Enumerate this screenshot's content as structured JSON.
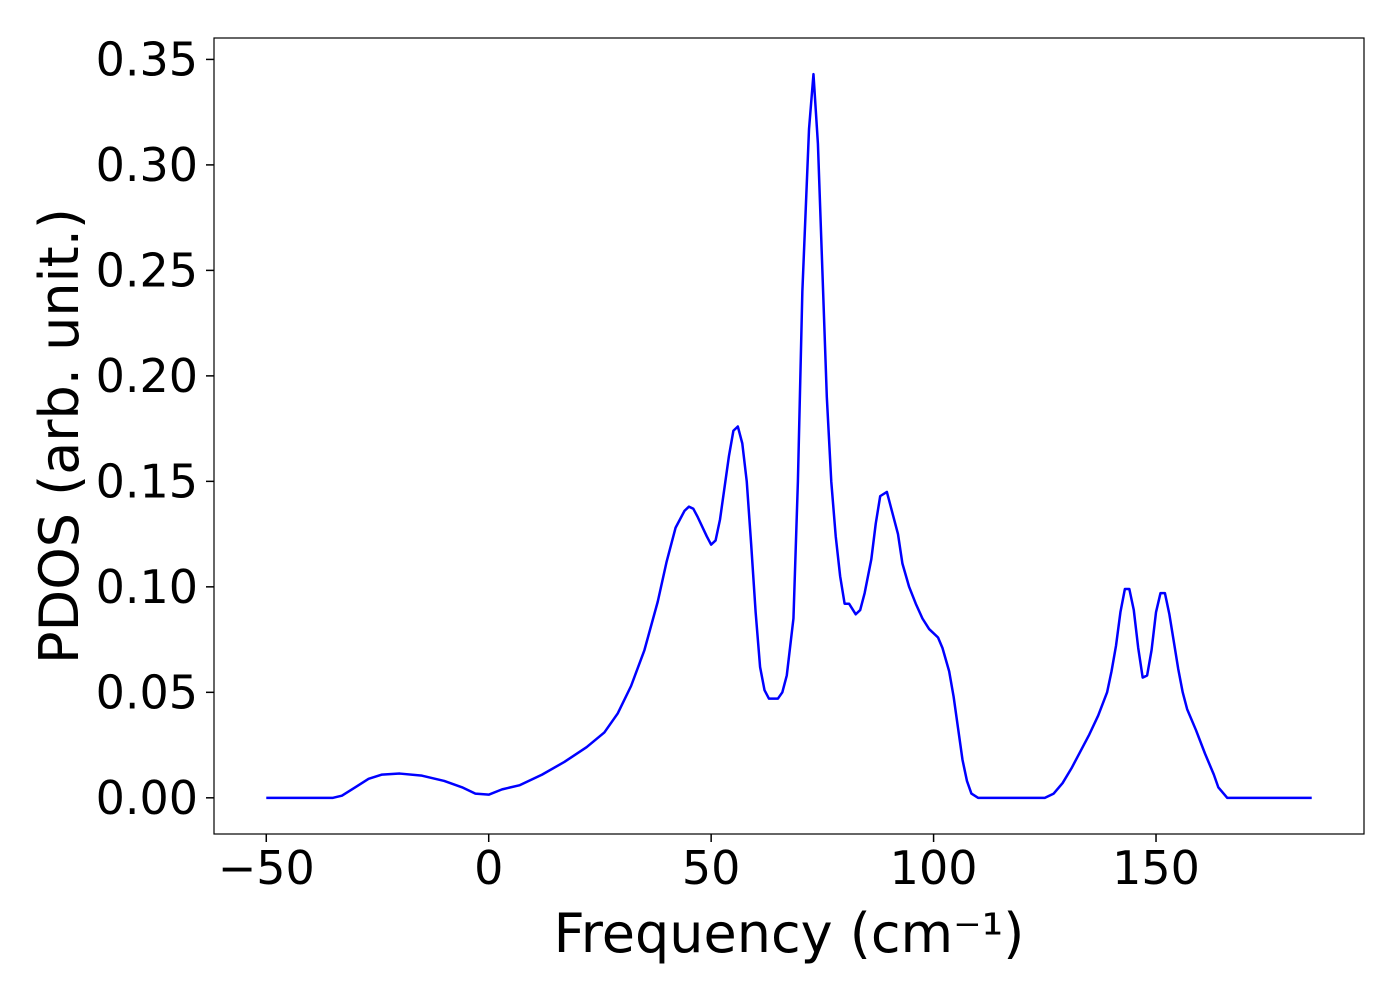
{
  "chart_data": {
    "type": "line",
    "xlabel": "Frequency (cm⁻¹)",
    "ylabel": "PDOS (arb. unit.)",
    "xlim": [
      -61.75,
      196.75
    ],
    "ylim": [
      -0.01715,
      0.36015
    ],
    "xticks": [
      {
        "value": -50,
        "label": "−50"
      },
      0,
      50,
      100,
      150
    ],
    "yticks": [
      {
        "value": 0,
        "label": "0.00"
      },
      {
        "value": 0.05,
        "label": "0.05"
      },
      {
        "value": 0.1,
        "label": "0.10"
      },
      {
        "value": 0.15,
        "label": "0.15"
      },
      {
        "value": 0.2,
        "label": "0.20"
      },
      {
        "value": 0.25,
        "label": "0.25"
      },
      {
        "value": 0.3,
        "label": "0.30"
      },
      {
        "value": 0.35,
        "label": "0.35"
      }
    ],
    "series": [
      {
        "color": "#0000ff",
        "x": [
          -50,
          -35,
          -33,
          -30,
          -27,
          -24,
          -20,
          -15,
          -10,
          -6,
          -3,
          0,
          3,
          7,
          12,
          17,
          22,
          26,
          29,
          32,
          35,
          38,
          40,
          42,
          44,
          45,
          46,
          47,
          49,
          50,
          51,
          52,
          54,
          55,
          56,
          57,
          58,
          59,
          60,
          61,
          62,
          63,
          65,
          66,
          67,
          68.5,
          69.5,
          70.5,
          72,
          73,
          74,
          75,
          76,
          77,
          78,
          79,
          80,
          81,
          82.5,
          83.5,
          84.5,
          86,
          87,
          88,
          89.5,
          90.5,
          92,
          93,
          94.5,
          96,
          97.5,
          99,
          101,
          102,
          103.5,
          104.5,
          105.5,
          106.5,
          107.5,
          108.5,
          110,
          125,
          127,
          129,
          131,
          133,
          135,
          137,
          139,
          140,
          141,
          142,
          143,
          144,
          145,
          146,
          147,
          148,
          149,
          150,
          151,
          152,
          153,
          154,
          155,
          156,
          157,
          159,
          161,
          163,
          164,
          166,
          185
        ],
        "values": [
          0,
          0,
          0.001,
          0.005,
          0.009,
          0.011,
          0.0115,
          0.0105,
          0.008,
          0.005,
          0.002,
          0.0015,
          0.004,
          0.006,
          0.011,
          0.017,
          0.024,
          0.031,
          0.04,
          0.053,
          0.07,
          0.093,
          0.112,
          0.128,
          0.136,
          0.138,
          0.137,
          0.133,
          0.124,
          0.12,
          0.122,
          0.132,
          0.162,
          0.174,
          0.176,
          0.168,
          0.15,
          0.12,
          0.088,
          0.062,
          0.051,
          0.047,
          0.047,
          0.05,
          0.058,
          0.085,
          0.15,
          0.24,
          0.317,
          0.343,
          0.31,
          0.25,
          0.19,
          0.15,
          0.124,
          0.105,
          0.092,
          0.092,
          0.087,
          0.089,
          0.097,
          0.113,
          0.13,
          0.143,
          0.145,
          0.137,
          0.125,
          0.111,
          0.1,
          0.092,
          0.085,
          0.08,
          0.076,
          0.071,
          0.06,
          0.048,
          0.033,
          0.018,
          0.008,
          0.002,
          0,
          0,
          0.002,
          0.007,
          0.014,
          0.022,
          0.03,
          0.039,
          0.05,
          0.06,
          0.072,
          0.088,
          0.099,
          0.099,
          0.089,
          0.071,
          0.057,
          0.058,
          0.07,
          0.088,
          0.097,
          0.097,
          0.087,
          0.074,
          0.061,
          0.05,
          0.042,
          0.032,
          0.021,
          0.011,
          0.005,
          0,
          0
        ]
      }
    ]
  }
}
